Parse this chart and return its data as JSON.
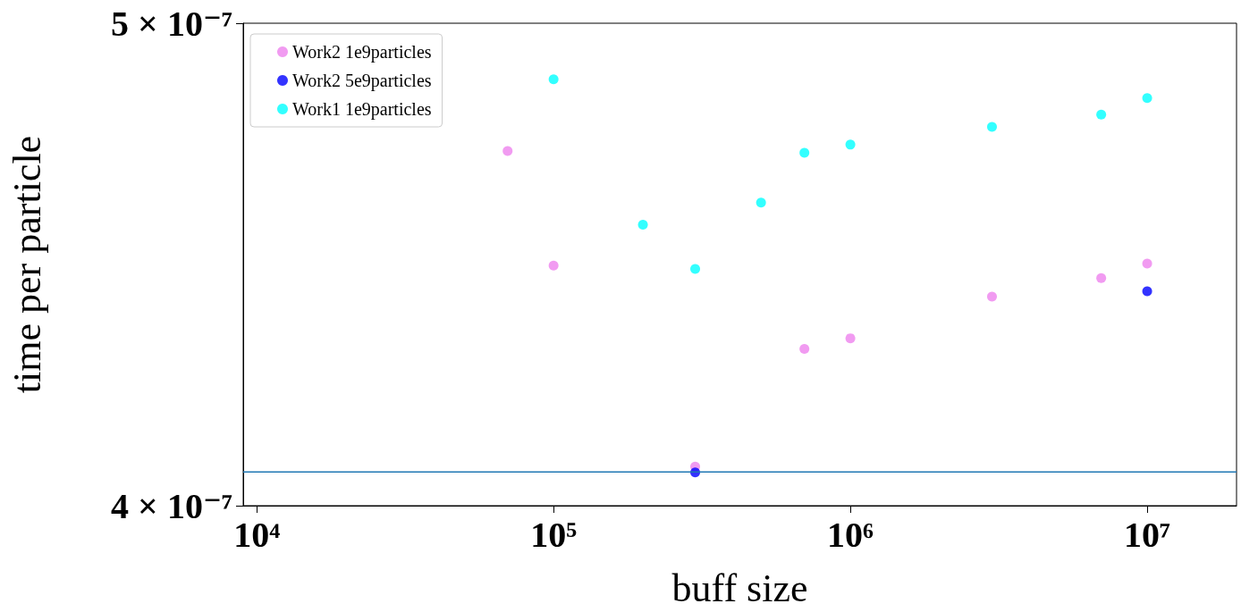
{
  "chart_data": {
    "type": "scatter",
    "xlabel": "buff size",
    "ylabel": "time per particle",
    "log": "xy",
    "grid": false,
    "legend": "top left",
    "marker": "circle",
    "xlim": [
      9000,
      20000000
    ],
    "xticks": [
      {
        "value": 10000,
        "label": "10⁴"
      },
      {
        "value": 100000,
        "label": "10⁵"
      },
      {
        "value": 1000000,
        "label": "10⁶"
      },
      {
        "value": 10000000,
        "label": "10⁷"
      }
    ],
    "ylim": [
      4e-07,
      5e-07
    ],
    "yticks": [
      {
        "value": 4e-07,
        "label": "4 × 10⁻⁷"
      },
      {
        "value": 5e-07,
        "label": "5 × 10⁻⁷"
      }
    ],
    "series": [
      {
        "name": "Work2 1e9particles",
        "color": "#ee82ee",
        "x": [
          70000,
          100000,
          300000,
          700000,
          1000000,
          3000000,
          7000000,
          10000000
        ],
        "values": [
          4.713e-07,
          4.47e-07,
          4.073e-07,
          4.301e-07,
          4.322e-07,
          4.406e-07,
          4.444e-07,
          4.474e-07
        ]
      },
      {
        "name": "Work2 5e9particles",
        "color": "#0000ff",
        "x": [
          300000,
          10000000
        ],
        "values": [
          4.062e-07,
          4.417e-07
        ]
      },
      {
        "name": "Work1 1e9particles",
        "color": "#00ffff",
        "x": [
          100000,
          200000,
          300000,
          500000,
          700000,
          1000000,
          3000000,
          7000000,
          10000000
        ],
        "values": [
          4.872e-07,
          4.555e-07,
          4.463e-07,
          4.602e-07,
          4.709e-07,
          4.727e-07,
          4.766e-07,
          4.793e-07,
          4.83e-07
        ]
      }
    ],
    "ref_lines": [
      {
        "axis": "y",
        "value": 4.063e-07,
        "color": "#1f77b4"
      }
    ]
  }
}
